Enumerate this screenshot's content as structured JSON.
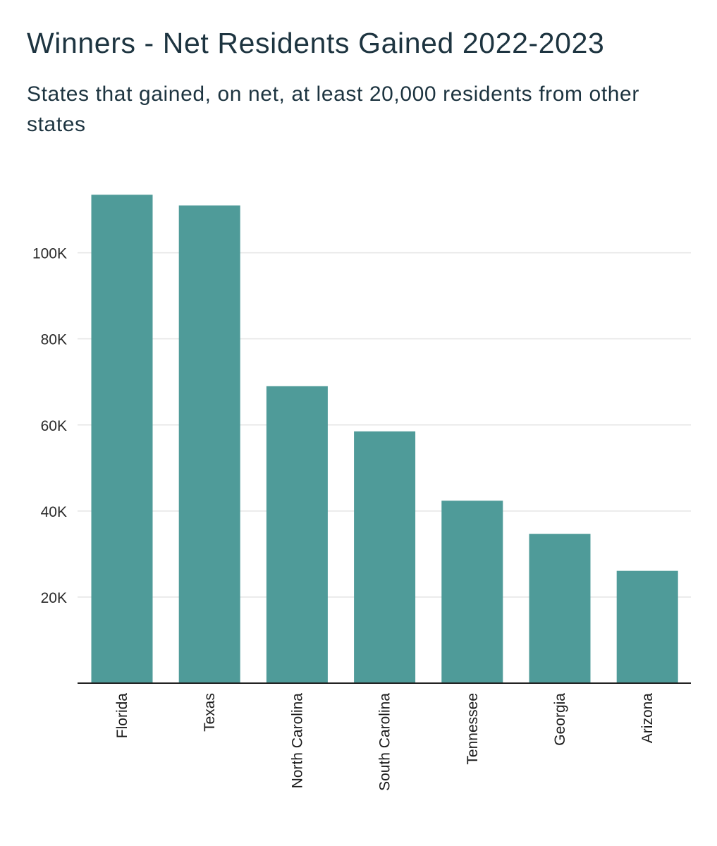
{
  "chart_data": {
    "type": "bar",
    "title": "Winners - Net Residents Gained 2022-2023",
    "subtitle": "States that gained, on net, at least 20,000 residents from other states",
    "categories": [
      "Florida",
      "Texas",
      "North Carolina",
      "South Carolina",
      "Tennessee",
      "Georgia",
      "Arizona"
    ],
    "values": [
      113500,
      111000,
      69000,
      58500,
      42400,
      34700,
      26100
    ],
    "ylim": [
      0,
      120000
    ],
    "y_ticks": [
      20000,
      40000,
      60000,
      80000,
      100000
    ],
    "y_tick_labels": [
      "20K",
      "40K",
      "60K",
      "80K",
      "100K"
    ],
    "grid": true,
    "bar_color": "#4f9b99",
    "grid_color": "#e4e4e4",
    "axis_color": "#222222"
  }
}
